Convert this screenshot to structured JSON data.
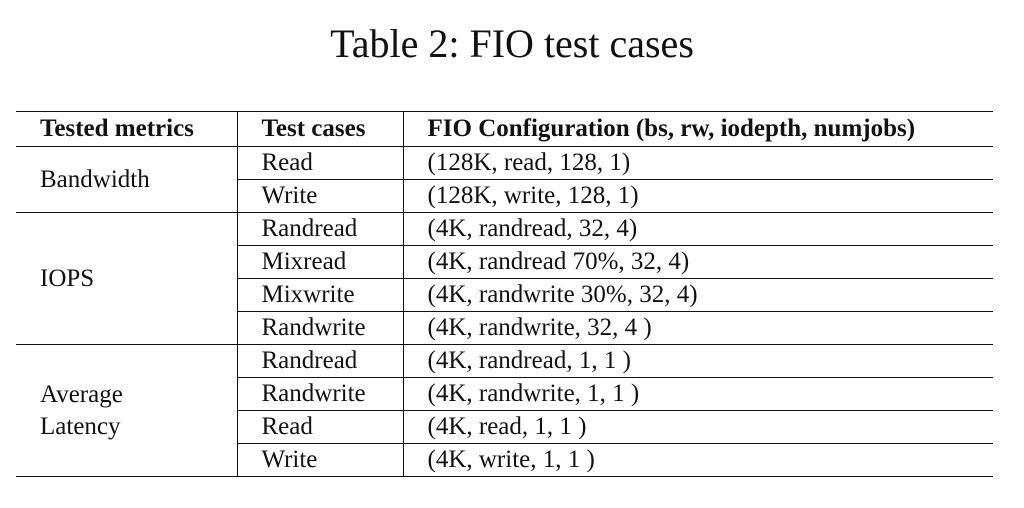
{
  "caption": "Table 2: FIO test cases",
  "headers": [
    "Tested metrics",
    "Test cases",
    "FIO Configuration (bs, rw, iodepth, numjobs)"
  ],
  "groups": [
    {
      "metric_lines": [
        "Bandwidth"
      ],
      "rows": [
        {
          "case": "Read",
          "config": "(128K, read, 128, 1)"
        },
        {
          "case": "Write",
          "config": "(128K, write, 128, 1)"
        }
      ]
    },
    {
      "metric_lines": [
        "IOPS"
      ],
      "rows": [
        {
          "case": "Randread",
          "config": "(4K, randread, 32, 4)"
        },
        {
          "case": "Mixread",
          "config": "(4K, randread 70%, 32, 4)"
        },
        {
          "case": "Mixwrite",
          "config": "(4K, randwrite 30%, 32, 4)"
        },
        {
          "case": "Randwrite",
          "config": "(4K, randwrite, 32, 4 )"
        }
      ]
    },
    {
      "metric_lines": [
        "Average",
        "Latency"
      ],
      "rows": [
        {
          "case": "Randread",
          "config": "(4K, randread, 1, 1 )"
        },
        {
          "case": "Randwrite",
          "config": "(4K, randwrite, 1, 1 )"
        },
        {
          "case": "Read",
          "config": "(4K, read, 1, 1 )"
        },
        {
          "case": "Write",
          "config": "(4K, write, 1, 1 )"
        }
      ]
    }
  ]
}
